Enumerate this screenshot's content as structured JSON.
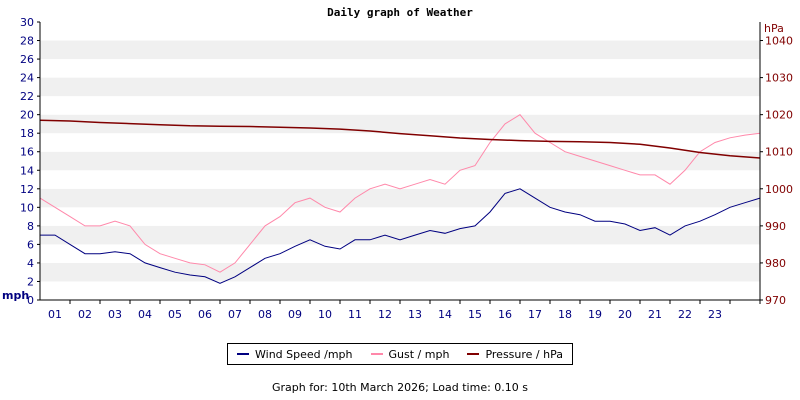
{
  "chart_data": {
    "type": "line",
    "title": "Daily graph of Weather",
    "x_tick_labels": [
      "01",
      "02",
      "03",
      "04",
      "05",
      "06",
      "07",
      "08",
      "09",
      "10",
      "11",
      "12",
      "13",
      "14",
      "15",
      "16",
      "17",
      "18",
      "19",
      "20",
      "21",
      "22",
      "23"
    ],
    "x_range_hours": [
      0,
      24
    ],
    "y_left": {
      "label": "mph",
      "range": [
        0,
        30
      ],
      "ticks": [
        0,
        2,
        4,
        6,
        8,
        10,
        12,
        14,
        16,
        18,
        20,
        22,
        24,
        26,
        28,
        30
      ]
    },
    "y_right": {
      "label": "hPa",
      "range": [
        970,
        1045
      ],
      "ticks": [
        970,
        980,
        990,
        1000,
        1010,
        1020,
        1030,
        1040
      ]
    },
    "grid": "alternating horizontal bands",
    "legend_position": "bottom-center",
    "series": [
      {
        "name": "Wind Speed /mph",
        "axis": "left",
        "color": "#000080",
        "x": [
          0,
          0.5,
          1,
          1.5,
          2,
          2.5,
          3,
          3.5,
          4,
          4.5,
          5,
          5.5,
          6,
          6.5,
          7,
          7.5,
          8,
          8.5,
          9,
          9.5,
          10,
          10.5,
          11,
          11.5,
          12,
          12.5,
          13,
          13.5,
          14,
          14.5,
          15,
          15.5,
          16,
          16.5,
          17,
          17.5,
          18,
          18.5,
          19,
          19.5,
          20,
          20.5,
          21,
          21.5,
          22,
          22.5,
          23,
          23.5,
          24
        ],
        "values": [
          7,
          7,
          6,
          5,
          5,
          5.2,
          5,
          4,
          3.5,
          3,
          2.7,
          2.5,
          1.8,
          2.5,
          3.5,
          4.5,
          5,
          5.8,
          6.5,
          5.8,
          5.5,
          6.5,
          6.5,
          7,
          6.5,
          7,
          7.5,
          7.2,
          7.7,
          8,
          9.5,
          11.5,
          12,
          11,
          10,
          9.5,
          9.2,
          8.5,
          8.5,
          8.2,
          7.5,
          7.8,
          7,
          8,
          8.5,
          9.2,
          10,
          10.5,
          11
        ]
      },
      {
        "name": "Gust / mph",
        "axis": "left",
        "color": "#ff88aa",
        "x": [
          0,
          0.5,
          1,
          1.5,
          2,
          2.5,
          3,
          3.5,
          4,
          4.5,
          5,
          5.5,
          6,
          6.5,
          7,
          7.5,
          8,
          8.5,
          9,
          9.5,
          10,
          10.5,
          11,
          11.5,
          12,
          12.5,
          13,
          13.5,
          14,
          14.5,
          15,
          15.5,
          16,
          16.5,
          17,
          17.5,
          18,
          18.5,
          19,
          19.5,
          20,
          20.5,
          21,
          21.5,
          22,
          22.5,
          23,
          23.5,
          24
        ],
        "values": [
          11,
          10,
          9,
          8,
          8,
          8.5,
          8,
          6,
          5,
          4.5,
          4,
          3.8,
          3,
          4,
          6,
          8,
          9,
          10.5,
          11,
          10,
          9.5,
          11,
          12,
          12.5,
          12,
          12.5,
          13,
          12.5,
          14,
          14.5,
          17,
          19,
          20,
          18,
          17,
          16,
          15.5,
          15,
          14.5,
          14,
          13.5,
          13.5,
          12.5,
          14,
          16,
          17,
          17.5,
          17.8,
          18
        ]
      },
      {
        "name": "Pressure / hPa",
        "axis": "right",
        "color": "#800000",
        "x": [
          0,
          1,
          2,
          3,
          4,
          5,
          6,
          7,
          8,
          9,
          10,
          11,
          12,
          13,
          14,
          15,
          16,
          17,
          18,
          19,
          20,
          21,
          22,
          23,
          24
        ],
        "values": [
          1018.5,
          1018.3,
          1017.9,
          1017.6,
          1017.3,
          1017.0,
          1016.9,
          1016.8,
          1016.6,
          1016.4,
          1016.1,
          1015.6,
          1014.9,
          1014.3,
          1013.7,
          1013.3,
          1013.0,
          1012.8,
          1012.7,
          1012.5,
          1012.0,
          1011.0,
          1009.8,
          1008.9,
          1008.3
        ]
      }
    ]
  },
  "footer": {
    "text": "Graph for: 10th March 2026; Load time: 0.10 s"
  }
}
